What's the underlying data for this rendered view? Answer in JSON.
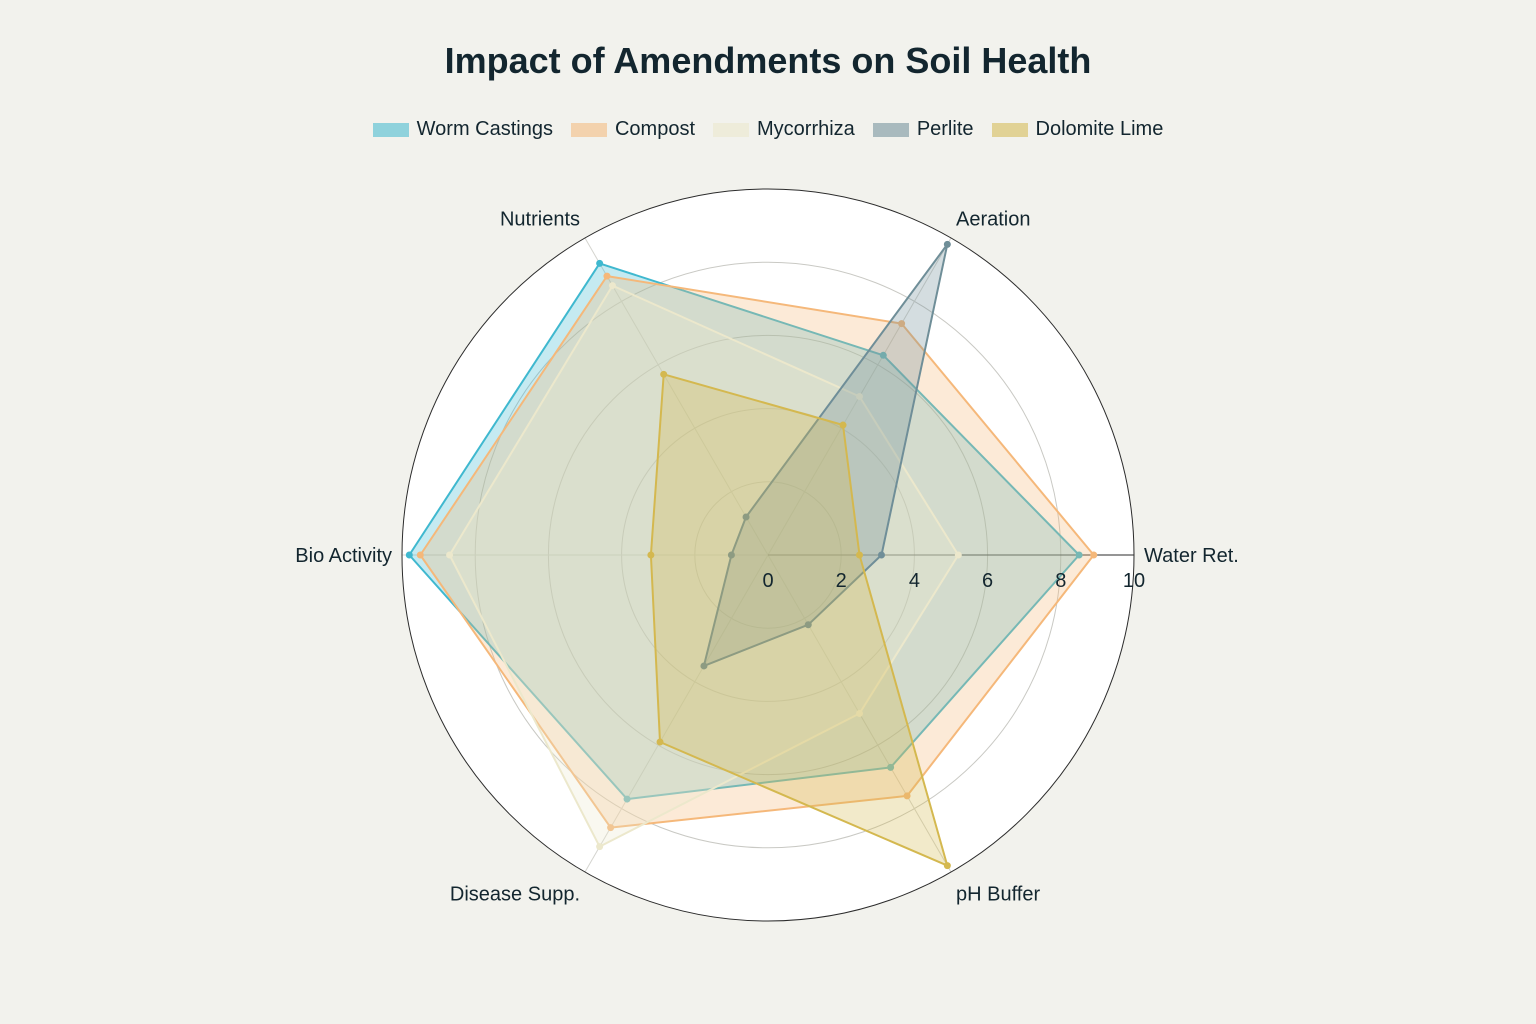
{
  "chart_data": {
    "type": "radar",
    "title": "Impact of Amendments on Soil Health",
    "axes": [
      "Water Ret.",
      "Aeration",
      "Nutrients",
      "Bio Activity",
      "Disease Supp.",
      "pH Buffer"
    ],
    "radial_range": [
      0,
      10
    ],
    "radial_ticks": [
      0,
      2,
      4,
      6,
      8,
      10
    ],
    "legend_position": "top-center",
    "series": [
      {
        "name": "Worm Castings",
        "color": "#3fb8cf",
        "values": [
          8.5,
          6.3,
          9.2,
          9.8,
          7.7,
          6.7
        ]
      },
      {
        "name": "Compost",
        "color": "#f5b87a",
        "values": [
          8.9,
          7.3,
          8.8,
          9.5,
          8.6,
          7.6
        ]
      },
      {
        "name": "Mycorrhiza",
        "color": "#ece8cc",
        "values": [
          5.2,
          5.0,
          8.5,
          8.7,
          9.2,
          5.0
        ]
      },
      {
        "name": "Perlite",
        "color": "#6f8e98",
        "values": [
          3.1,
          9.8,
          1.2,
          1.0,
          3.5,
          2.2
        ]
      },
      {
        "name": "Dolomite Lime",
        "color": "#d4b84f",
        "values": [
          2.5,
          4.1,
          5.7,
          3.2,
          5.9,
          9.8
        ]
      }
    ]
  }
}
